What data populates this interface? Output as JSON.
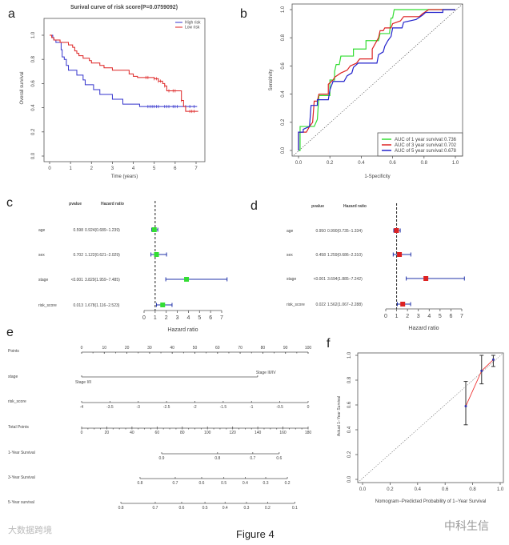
{
  "figure_caption": "Figure 4",
  "watermarks": {
    "left": "大数据跨境",
    "right": "中科生信"
  },
  "chart_data": [
    {
      "panel": "a",
      "type": "line",
      "title": "Surival curve of risk score(P=0.0759092)",
      "xlabel": "Time (years)",
      "ylabel": "Overall survival",
      "xlim": [
        0,
        7
      ],
      "ylim": [
        0,
        1
      ],
      "xticks": [
        "0",
        "1",
        "2",
        "3",
        "4",
        "5",
        "6",
        "7"
      ],
      "yticks": [
        "0.0",
        "0.2",
        "0.4",
        "0.6",
        "0.8",
        "1.0"
      ],
      "legend": "top-right",
      "series": [
        {
          "name": "High risk",
          "color": "#3333cc",
          "x": [
            0,
            0.15,
            0.2,
            0.3,
            0.55,
            0.6,
            0.7,
            0.8,
            0.9,
            1.3,
            1.6,
            1.7,
            2.1,
            2.4,
            3.0,
            3.5,
            4.3,
            7.05
          ],
          "y": [
            1,
            0.98,
            0.96,
            0.94,
            0.88,
            0.82,
            0.8,
            0.75,
            0.71,
            0.67,
            0.63,
            0.59,
            0.55,
            0.51,
            0.47,
            0.43,
            0.41,
            0.41
          ],
          "censored": [
            4.7,
            4.8,
            4.9,
            5.0,
            5.1,
            5.2,
            5.5,
            5.6,
            5.7,
            5.9,
            6.0,
            6.1,
            6.5,
            6.7,
            6.9
          ]
        },
        {
          "name": "Low risk",
          "color": "#dd2222",
          "x": [
            0,
            0.1,
            0.2,
            0.5,
            0.9,
            1.1,
            1.2,
            1.3,
            1.4,
            1.6,
            1.9,
            2.0,
            2.4,
            2.6,
            3.0,
            3.8,
            4.0,
            4.2,
            5.0,
            5.2,
            5.4,
            5.5,
            5.6,
            6.3,
            6.4,
            6.5,
            6.6,
            7.1
          ],
          "y": [
            1,
            0.98,
            0.96,
            0.94,
            0.92,
            0.9,
            0.87,
            0.85,
            0.83,
            0.81,
            0.79,
            0.77,
            0.75,
            0.73,
            0.71,
            0.68,
            0.66,
            0.65,
            0.64,
            0.62,
            0.6,
            0.58,
            0.54,
            0.46,
            0.41,
            0.37,
            0.37,
            0.37
          ],
          "censored": [
            4.6,
            4.7,
            5.0,
            5.1,
            5.2,
            5.3,
            5.5,
            5.7,
            5.9,
            6.0,
            6.3,
            6.7,
            6.8,
            6.9
          ]
        }
      ]
    },
    {
      "panel": "b",
      "type": "line",
      "title": "",
      "xlabel": "1-Specificity",
      "ylabel": "Sensitivity",
      "xlim": [
        0,
        1
      ],
      "ylim": [
        0,
        1
      ],
      "xticks": [
        "0.0",
        "0.2",
        "0.4",
        "0.6",
        "0.8",
        "1.0"
      ],
      "yticks": [
        "0.0",
        "0.2",
        "0.4",
        "0.6",
        "0.8",
        "1.0"
      ],
      "legend": "bottom-right",
      "series": [
        {
          "name": "AUC of 1 year survival:",
          "auc": "0.736",
          "color": "#33dd33",
          "x": [
            0,
            0.01,
            0.01,
            0.1,
            0.12,
            0.13,
            0.2,
            0.2,
            0.23,
            0.23,
            0.24,
            0.26,
            0.27,
            0.35,
            0.35,
            0.43,
            0.43,
            0.51,
            0.52,
            0.58,
            0.59,
            0.6,
            0.61,
            1
          ],
          "y": [
            0,
            0,
            0.17,
            0.17,
            0.22,
            0.39,
            0.39,
            0.5,
            0.5,
            0.56,
            0.61,
            0.61,
            0.67,
            0.67,
            0.72,
            0.72,
            0.78,
            0.78,
            0.83,
            0.83,
            0.94,
            0.94,
            1,
            1
          ]
        },
        {
          "name": "AUC of 3 year survival:",
          "auc": "0.702",
          "color": "#dd2222",
          "x": [
            0,
            0,
            0.05,
            0.07,
            0.09,
            0.1,
            0.12,
            0.13,
            0.19,
            0.19,
            0.22,
            0.23,
            0.27,
            0.31,
            0.33,
            0.37,
            0.39,
            0.47,
            0.47,
            0.51,
            0.52,
            0.54,
            0.55,
            0.59,
            0.6,
            0.65,
            0.67,
            0.77,
            0.79,
            0.83,
            1
          ],
          "y": [
            0,
            0.13,
            0.13,
            0.17,
            0.2,
            0.35,
            0.35,
            0.4,
            0.4,
            0.47,
            0.5,
            0.52,
            0.55,
            0.57,
            0.6,
            0.62,
            0.65,
            0.65,
            0.72,
            0.8,
            0.85,
            0.85,
            0.87,
            0.87,
            0.9,
            0.92,
            0.95,
            0.95,
            0.97,
            1,
            1
          ]
        },
        {
          "name": "AUC of 5 year survival:",
          "auc": "0.678",
          "color": "#2222cc",
          "x": [
            0,
            0,
            0.03,
            0.03,
            0.07,
            0.08,
            0.12,
            0.12,
            0.19,
            0.2,
            0.22,
            0.29,
            0.31,
            0.34,
            0.35,
            0.38,
            0.5,
            0.51,
            0.54,
            0.55,
            0.57,
            0.59,
            0.6,
            0.66,
            0.67,
            0.75,
            0.79,
            0.81,
            0.92,
            0.92,
            1
          ],
          "y": [
            0,
            0.13,
            0.13,
            0.15,
            0.17,
            0.32,
            0.32,
            0.36,
            0.36,
            0.43,
            0.49,
            0.49,
            0.53,
            0.55,
            0.59,
            0.62,
            0.62,
            0.68,
            0.7,
            0.74,
            0.78,
            0.81,
            0.87,
            0.87,
            0.91,
            0.93,
            0.96,
            0.98,
            0.98,
            1,
            1
          ]
        }
      ]
    },
    {
      "panel": "c",
      "type": "forest",
      "color_point": "#33dd33",
      "header_pvalue": "pvalue",
      "header_hr": "Hazard ratio",
      "xlabel": "Hazard ratio",
      "xlim": [
        0,
        7
      ],
      "xticks": [
        "0",
        "1",
        "2",
        "3",
        "4",
        "5",
        "6",
        "7"
      ],
      "ref": 1,
      "rows": [
        {
          "label": "age",
          "pvalue": "0.598",
          "hr_text": "0.924(0.689−1.239)",
          "hr": 0.924,
          "lo": 0.689,
          "hi": 1.239
        },
        {
          "label": "sex",
          "pvalue": "0.702",
          "hr_text": "1.122(0.621−2.029)",
          "hr": 1.122,
          "lo": 0.621,
          "hi": 2.029
        },
        {
          "label": "stage",
          "pvalue": "<0.001",
          "hr_text": "3.829(1.959−7.485)",
          "hr": 3.829,
          "lo": 1.959,
          "hi": 7.485
        },
        {
          "label": "risk_score",
          "pvalue": "0.013",
          "hr_text": "1.678(1.116−2.523)",
          "hr": 1.678,
          "lo": 1.116,
          "hi": 2.523
        }
      ]
    },
    {
      "panel": "d",
      "type": "forest",
      "color_point": "#dd2222",
      "header_pvalue": "pvalue",
      "header_hr": "Hazard ratio",
      "xlabel": "Hazard ratio",
      "xlim": [
        0,
        7
      ],
      "xticks": [
        "0",
        "1",
        "2",
        "3",
        "4",
        "5",
        "6",
        "7"
      ],
      "ref": 1,
      "rows": [
        {
          "label": "age",
          "pvalue": "0.950",
          "hr_text": "0.990(0.735−1.334)",
          "hr": 0.99,
          "lo": 0.735,
          "hi": 1.334
        },
        {
          "label": "sex",
          "pvalue": "0.458",
          "hr_text": "1.259(0.686−2.310)",
          "hr": 1.259,
          "lo": 0.686,
          "hi": 2.31
        },
        {
          "label": "stage",
          "pvalue": "<0.001",
          "hr_text": "3.694(1.885−7.242)",
          "hr": 3.694,
          "lo": 1.885,
          "hi": 7.242
        },
        {
          "label": "risk_score",
          "pvalue": "0.022",
          "hr_text": "1.562(1.067−2.288)",
          "hr": 1.562,
          "lo": 1.067,
          "hi": 2.288
        }
      ]
    },
    {
      "panel": "e",
      "type": "nomogram",
      "rows": [
        {
          "label": "Points",
          "scale": "points",
          "ticks": [
            "0",
            "10",
            "20",
            "30",
            "40",
            "50",
            "60",
            "70",
            "80",
            "90",
            "100"
          ],
          "points": [
            0,
            10,
            20,
            30,
            40,
            50,
            60,
            70,
            80,
            90,
            100
          ],
          "minor": 5
        },
        {
          "label": "stage",
          "scale": "points",
          "categories": [
            "Stage I/II",
            "Stage III/IV"
          ],
          "points": [
            0,
            77.7
          ]
        },
        {
          "label": "risk_score",
          "scale": "points",
          "ticks": [
            "-4",
            "-3.5",
            "-3",
            "-2.5",
            "-2",
            "-1.5",
            "-1",
            "-0.5",
            "0"
          ],
          "points": [
            0,
            12.5,
            25,
            37.5,
            50,
            62.5,
            75,
            87.5,
            100
          ]
        },
        {
          "label": "Total Points",
          "scale": "total",
          "ticks": [
            "0",
            "20",
            "40",
            "60",
            "80",
            "100",
            "120",
            "140",
            "160",
            "180"
          ],
          "points": [
            0,
            20,
            40,
            60,
            80,
            100,
            120,
            140,
            160,
            180
          ],
          "minor": 5
        },
        {
          "label": "1-Year Survival",
          "scale": "total",
          "ticks": [
            "0.9",
            "0.8",
            "0.7",
            "0.6"
          ],
          "points": [
            63.6,
            108,
            136,
            157
          ]
        },
        {
          "label": "3-Year Survival",
          "scale": "total",
          "ticks": [
            "0.8",
            "0.7",
            "0.6",
            "0.5",
            "0.4",
            "0.3",
            "0.2"
          ],
          "points": [
            46.4,
            74.4,
            95.4,
            113,
            130,
            146.3,
            163.5
          ]
        },
        {
          "label": "5-Year survival",
          "scale": "total",
          "ticks": [
            "0.8",
            "0.7",
            "0.6",
            "0.5",
            "0.4",
            "0.3",
            "0.2",
            "0.1"
          ],
          "points": [
            31.2,
            58.5,
            79.5,
            98,
            114,
            131,
            147.8,
            169.4
          ]
        }
      ]
    },
    {
      "panel": "f",
      "type": "scatter",
      "xlabel": "Nomogram−Predicted Probability of 1−Year Survival",
      "ylabel": "Actual 1−Year Survival",
      "xlim": [
        0,
        1
      ],
      "ylim": [
        0,
        1
      ],
      "xticks": [
        "0.0",
        "0.2",
        "0.4",
        "0.6",
        "0.8",
        "1.0"
      ],
      "yticks": [
        "0.0",
        "0.2",
        "0.4",
        "0.6",
        "0.8",
        "1.0"
      ],
      "points": [
        {
          "x": 0.75,
          "y": 0.59,
          "lo": 0.44,
          "hi": 0.79
        },
        {
          "x": 0.865,
          "y": 0.875,
          "lo": 0.77,
          "hi": 1.0
        },
        {
          "x": 0.95,
          "y": 0.965,
          "lo": 0.91,
          "hi": 1.0
        }
      ]
    }
  ]
}
